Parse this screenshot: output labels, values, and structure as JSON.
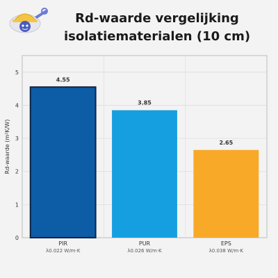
{
  "chart_data": {
    "type": "bar",
    "title_line1": "Rd-waarde vergelijking",
    "title_line2": "isolatiematerialen (10 cm)",
    "xlabel": "",
    "ylabel": "Rd-waarde (m²K/W)",
    "ylim": [
      0,
      5.5
    ],
    "yticks": [
      "0",
      "1",
      "2",
      "3",
      "4",
      "5"
    ],
    "grid": true,
    "categories": [
      "PIR",
      "PUR",
      "EPS"
    ],
    "sublabels": [
      "λ0.022 W/m·K",
      "λ0.026 W/m·K",
      "λ0.038 W/m·K"
    ],
    "values": [
      4.55,
      3.85,
      2.65
    ],
    "value_labels": [
      "4.55",
      "3.85",
      "2.65"
    ],
    "colors": [
      "#0d5ca6",
      "#169fe0",
      "#f8a928"
    ],
    "highlight_border": "#0b2545"
  },
  "logo": {
    "icon": "construction-worker-helmet-icon",
    "helmet_color": "#f4c542",
    "body_color": "#4a5bbf"
  }
}
